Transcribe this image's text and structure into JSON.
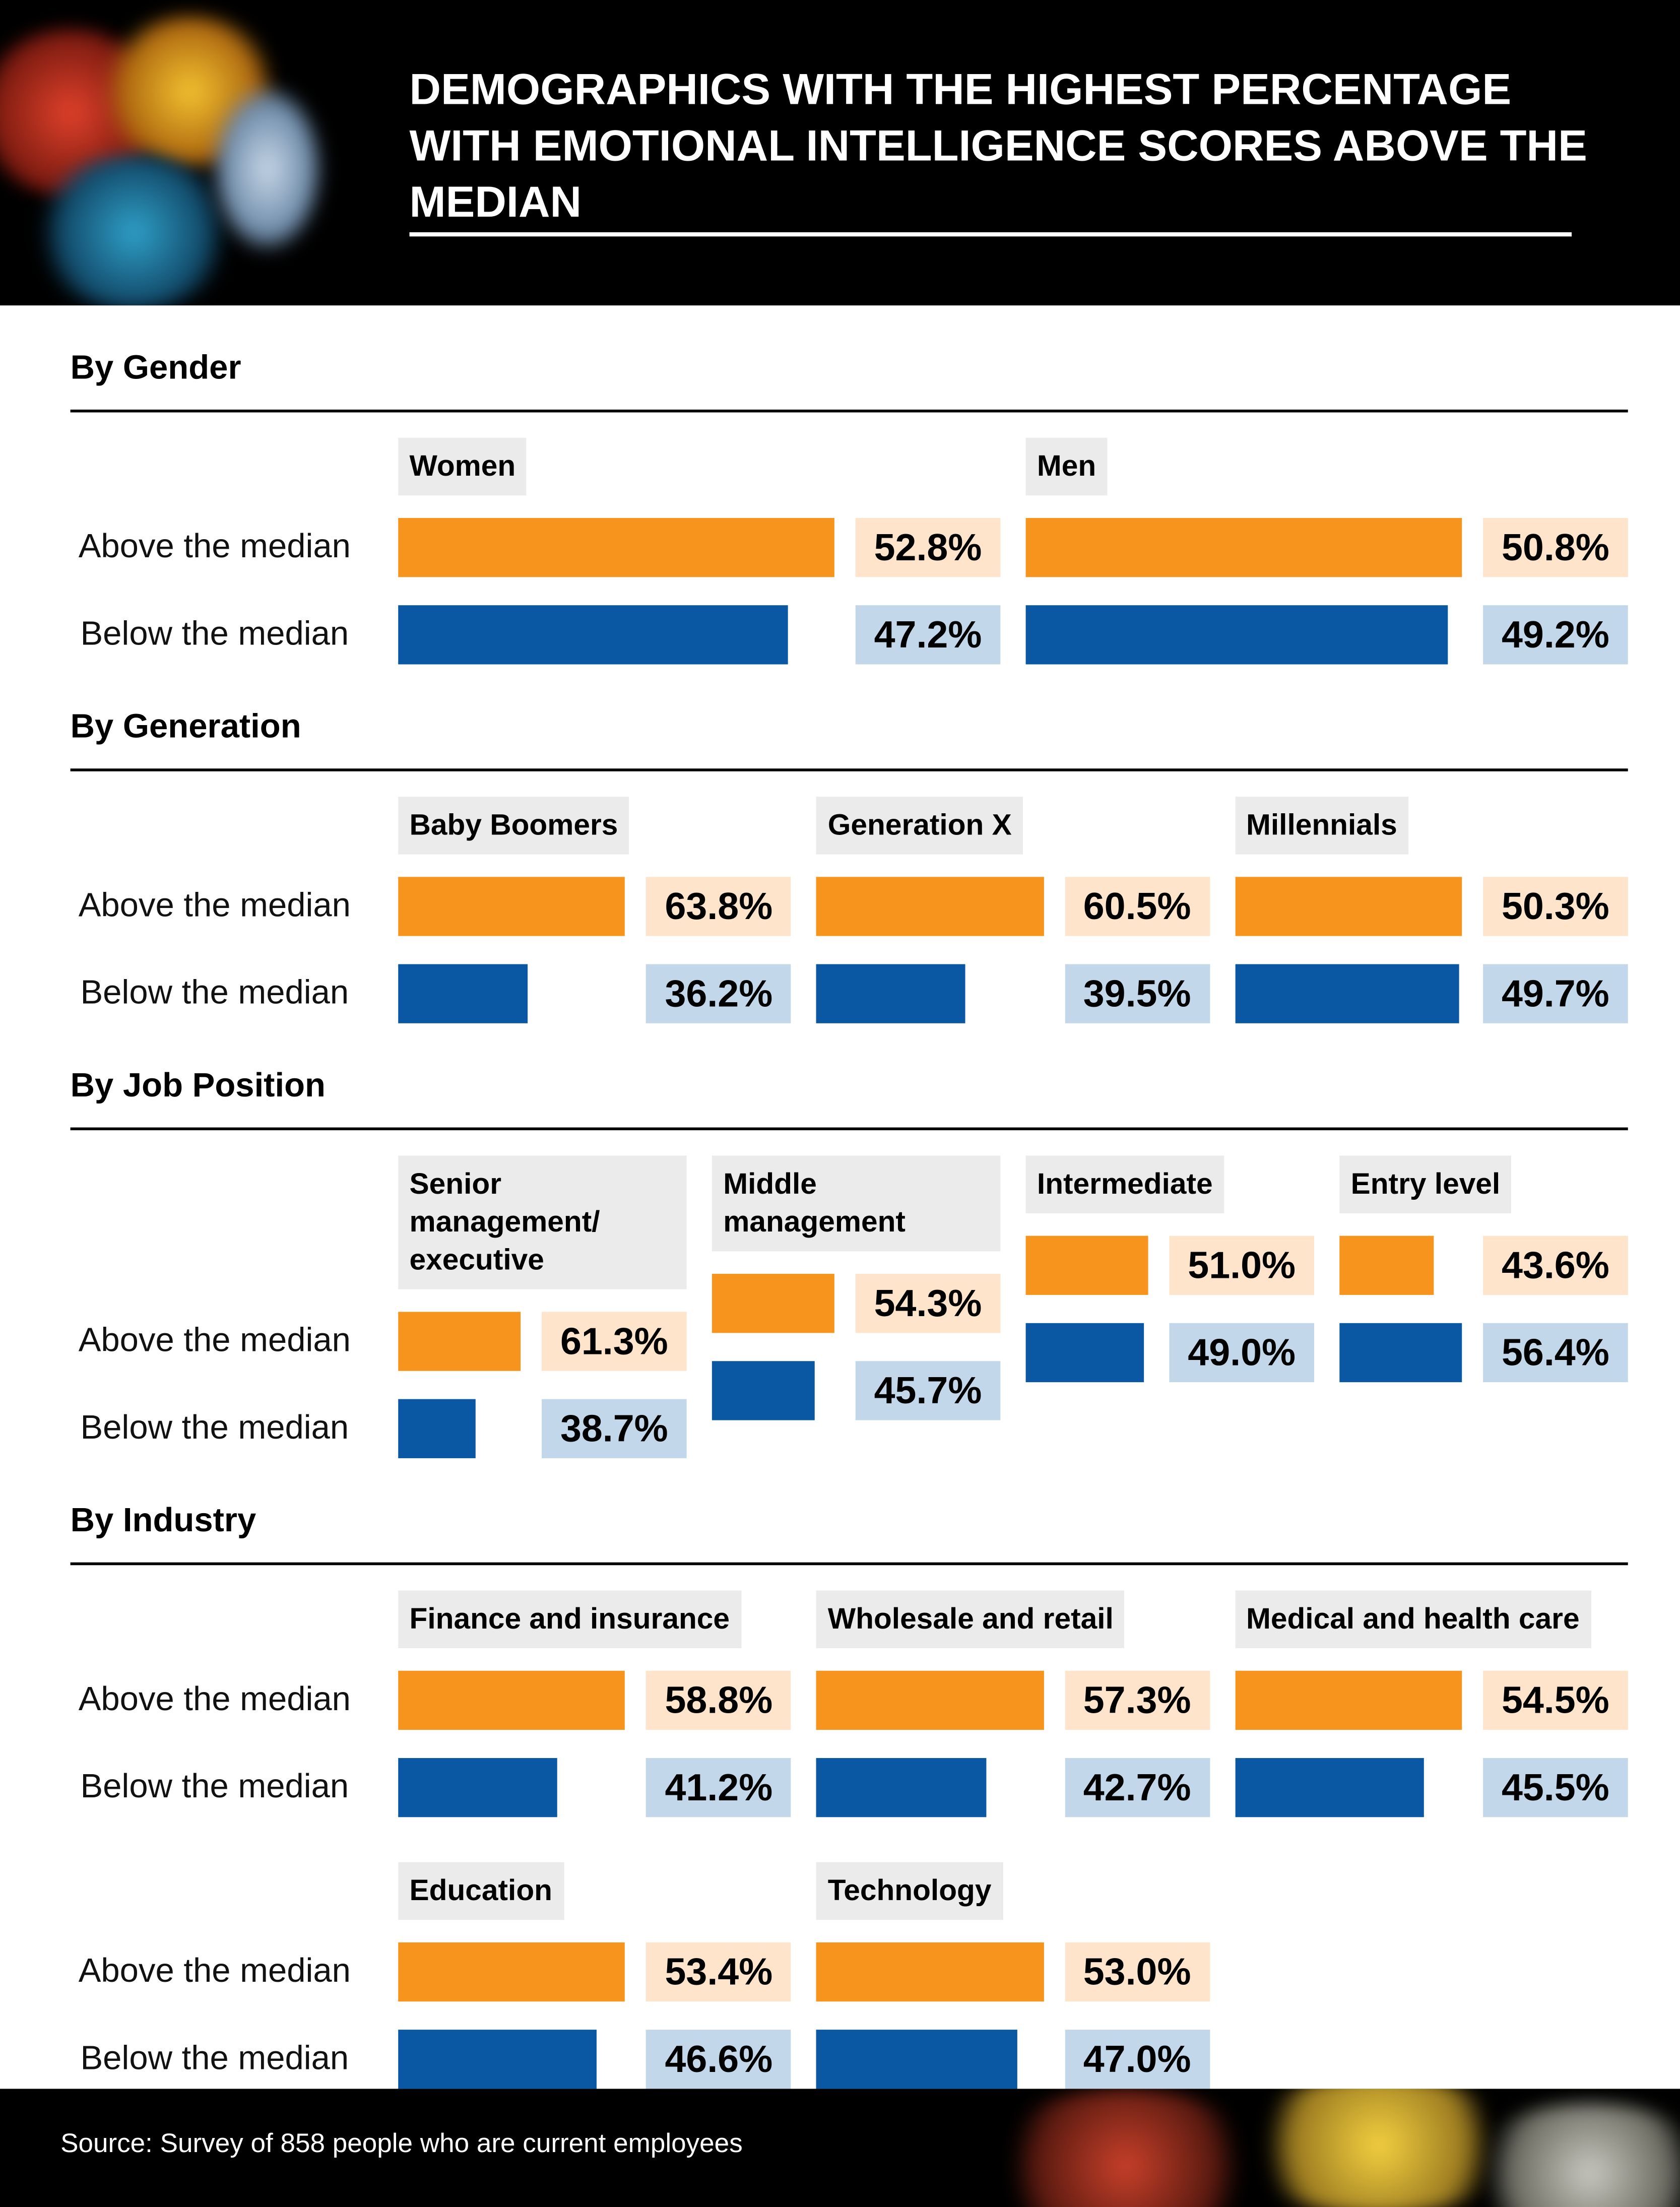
{
  "header": {
    "title": "DEMOGRAPHICS WITH THE HIGHEST PERCENTAGE WITH EMOTIONAL INTELLIGENCE SCORES ABOVE THE MEDIAN"
  },
  "rows": [
    "Above the median",
    "Below the median"
  ],
  "colors": [
    "#f7941d",
    "#0a58a3"
  ],
  "box_colors": [
    "#fde4cb",
    "#c3d7ea"
  ],
  "sections": [
    {
      "title": "By Gender",
      "groups": [
        {
          "name": "Women",
          "values": [
            52.8,
            47.2
          ],
          "value_labels": [
            "52.8%",
            "47.2%"
          ]
        },
        {
          "name": "Men",
          "values": [
            50.8,
            49.2
          ],
          "value_labels": [
            "50.8%",
            "49.2%"
          ]
        }
      ]
    },
    {
      "title": "By Generation",
      "groups": [
        {
          "name": "Baby Boomers",
          "values": [
            63.8,
            36.2
          ],
          "value_labels": [
            "63.8%",
            "36.2%"
          ]
        },
        {
          "name": "Generation X",
          "values": [
            60.5,
            39.5
          ],
          "value_labels": [
            "60.5%",
            "39.5%"
          ]
        },
        {
          "name": "Millennials",
          "values": [
            50.3,
            49.7
          ],
          "value_labels": [
            "50.3%",
            "49.7%"
          ]
        }
      ]
    },
    {
      "title": "By Job Position",
      "groups": [
        {
          "name": "Senior management/ executive",
          "values": [
            61.3,
            38.7
          ],
          "value_labels": [
            "61.3%",
            "38.7%"
          ]
        },
        {
          "name": "Middle management",
          "values": [
            54.3,
            45.7
          ],
          "value_labels": [
            "54.3%",
            "45.7%"
          ]
        },
        {
          "name": "Intermediate",
          "values": [
            51.0,
            49.0
          ],
          "value_labels": [
            "51.0%",
            "49.0%"
          ]
        },
        {
          "name": "Entry level",
          "values": [
            43.6,
            56.4
          ],
          "value_labels": [
            "43.6%",
            "56.4%"
          ]
        }
      ]
    },
    {
      "title": "By Industry",
      "groups": [
        {
          "name": "Finance and insurance",
          "values": [
            58.8,
            41.2
          ],
          "value_labels": [
            "58.8%",
            "41.2%"
          ]
        },
        {
          "name": "Wholesale and retail",
          "values": [
            57.3,
            42.7
          ],
          "value_labels": [
            "57.3%",
            "42.7%"
          ]
        },
        {
          "name": "Medical and health care",
          "values": [
            54.5,
            45.5
          ],
          "value_labels": [
            "54.5%",
            "45.5%"
          ]
        },
        {
          "name": "Education",
          "values": [
            53.4,
            46.6
          ],
          "value_labels": [
            "53.4%",
            "46.6%"
          ]
        },
        {
          "name": "Technology",
          "values": [
            53.0,
            47.0
          ],
          "value_labels": [
            "53.0%",
            "47.0%"
          ]
        }
      ]
    }
  ],
  "footer": {
    "source": "Source: Survey of 858 people who are current employees"
  }
}
